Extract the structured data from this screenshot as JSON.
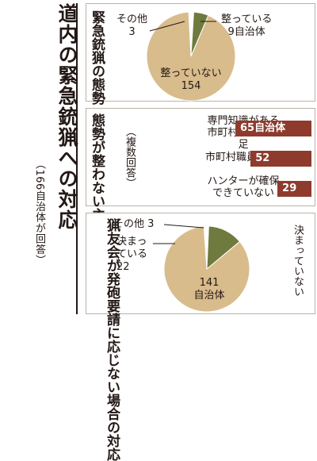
{
  "main": {
    "title": "道内の緊急銃猟への対応",
    "note": "（166自治体が回答）"
  },
  "sections": {
    "posture": {
      "title": "緊急銃猟の態勢",
      "labels": {
        "other": "その他",
        "other_value": "3",
        "ready": "整っている",
        "ready_value": "9自治体",
        "not_ready": "整っていない",
        "not_ready_value": "154"
      }
    },
    "reasons": {
      "title": "態勢が整わない主な理由",
      "note": "（複数回答）",
      "items": [
        {
          "label": "専門知識がある市町村職員が不足",
          "value_text": "65自治体"
        },
        {
          "label": "市町村職員が不足",
          "value_text": "52"
        },
        {
          "label": "ハンターが確保できていない",
          "value_text": "29"
        }
      ]
    },
    "hunters": {
      "title": "猟友会が発砲要請に応じない場合の対応",
      "labels": {
        "other": "その他",
        "other_value": "3",
        "decided": "決まっている",
        "decided_value": "22",
        "not_decided": "決まっていない",
        "not_decided_value": "141",
        "unit": "自治体"
      }
    }
  },
  "colors": {
    "pie_main": "#d9bc8c",
    "pie_accent": "#6f7a3e",
    "pie_other": "#ffffff",
    "bar": "#8e3b2d"
  },
  "chart_data": [
    {
      "type": "pie",
      "title": "緊急銃猟の態勢",
      "categories": [
        "その他",
        "整っている",
        "整っていない"
      ],
      "values": [
        3,
        9,
        154
      ]
    },
    {
      "type": "bar",
      "orientation": "horizontal",
      "title": "態勢が整わない主な理由",
      "subtitle": "（複数回答）",
      "categories": [
        "専門知識がある市町村職員が不足",
        "市町村職員が不足",
        "ハンターが確保できていない"
      ],
      "values": [
        65,
        52,
        29
      ]
    },
    {
      "type": "pie",
      "title": "猟友会が発砲要請に応じない場合の対応",
      "categories": [
        "その他",
        "決まっている",
        "決まっていない"
      ],
      "values": [
        3,
        22,
        141
      ]
    }
  ]
}
